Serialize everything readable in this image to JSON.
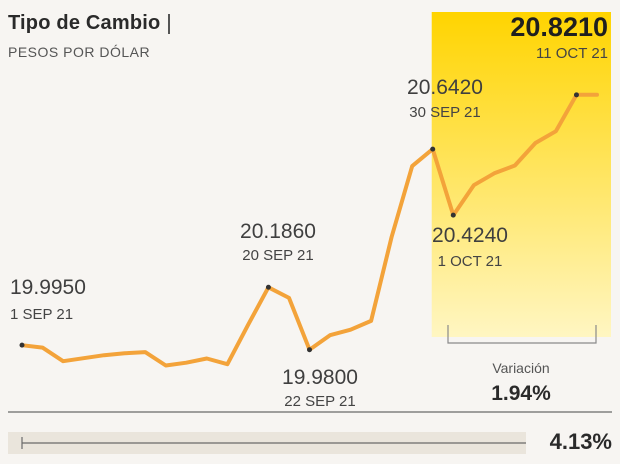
{
  "header": {
    "title": "Tipo de Cambio",
    "subtitle": "PESOS POR DÓLAR"
  },
  "variation": {
    "label": "Variación",
    "value": "1.94%"
  },
  "footer": {
    "value": "4.13%"
  },
  "colors": {
    "line": "#f3a33a",
    "highlight_top": "#ffd400",
    "highlight_bottom": "#fff6c2",
    "text": "#444444"
  },
  "chart_data": {
    "type": "line",
    "title": "Tipo de Cambio",
    "subtitle": "PESOS POR DÓLAR",
    "xlabel": "",
    "ylabel": "",
    "x": [
      1,
      2,
      3,
      4,
      5,
      6,
      7,
      8,
      9,
      10,
      11,
      12,
      13,
      14,
      15,
      16,
      17,
      18,
      19,
      20,
      21,
      22,
      23,
      24,
      25,
      26,
      27,
      28,
      29
    ],
    "series": [
      {
        "values": [
          19.995,
          19.987,
          19.942,
          19.952,
          19.962,
          19.968,
          19.972,
          19.928,
          19.937,
          19.951,
          19.932,
          20.061,
          20.186,
          20.151,
          19.98,
          20.028,
          20.046,
          20.075,
          20.352,
          20.586,
          20.642,
          20.424,
          20.523,
          20.562,
          20.588,
          20.662,
          20.701,
          20.821,
          20.821
        ]
      }
    ],
    "ylim": [
      19.88,
      20.87
    ],
    "highlight_range": [
      "30 SEP 21",
      "11 OCT 21"
    ],
    "annotations": [
      {
        "value": "19.9950",
        "date": "1 SEP 21"
      },
      {
        "value": "20.1860",
        "date": "20 SEP 21"
      },
      {
        "value": "19.9800",
        "date": "22 SEP 21"
      },
      {
        "value": "20.6420",
        "date": "30 SEP 21"
      },
      {
        "value": "20.4240",
        "date": "1 OCT 21"
      },
      {
        "value": "20.8210",
        "date": "11 OCT 21"
      }
    ],
    "grid": false,
    "legend": "none"
  }
}
